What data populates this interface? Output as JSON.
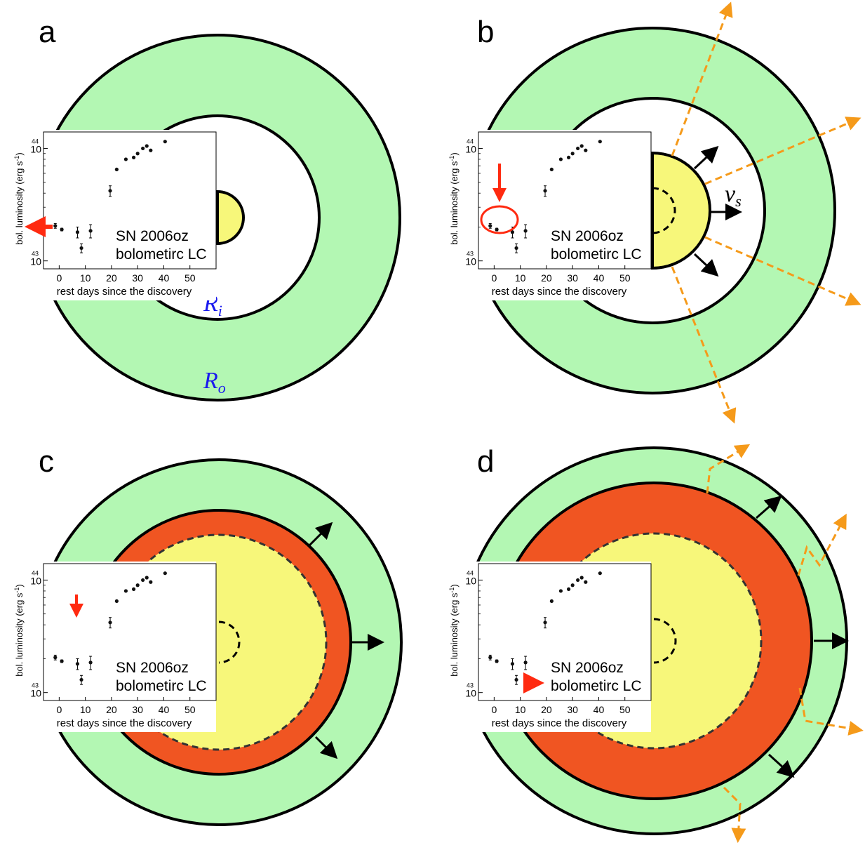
{
  "panels": {
    "a": {
      "label": "a"
    },
    "b": {
      "label": "b"
    },
    "c": {
      "label": "c"
    },
    "d": {
      "label": "d"
    }
  },
  "symbols": {
    "inner_radius": "R",
    "inner_radius_sub": "i",
    "outer_radius": "R",
    "outer_radius_sub": "o",
    "shock_velocity": "v",
    "shock_velocity_sub": "s"
  },
  "inset": {
    "object": "SN 2006oz",
    "subtitle": "bolometirc LC",
    "xlabel": "rest days since the discovery",
    "ylabel": "bol. luminosity (erg s",
    "ylabel_sup": "-1",
    "ylabel_close": ")",
    "x_ticks": [
      "0",
      "10",
      "20",
      "30",
      "40",
      "50"
    ],
    "y_ticks": [
      {
        "base": "10",
        "exp": "44"
      },
      {
        "base": "10",
        "exp": "43"
      }
    ]
  },
  "colors": {
    "csm_shell": "#b3f7b3",
    "ejecta": "#f7f77a",
    "shocked_shell": "#f05522",
    "photon_path": "#f59a1a",
    "marker_arrow": "#ff2a10",
    "radius_label": "#1a1aee"
  },
  "chart_data": {
    "type": "scatter",
    "xlabel": "rest days since the discovery",
    "ylabel": "bol. luminosity (erg s^-1)",
    "yscale": "log",
    "xlim": [
      -6,
      60
    ],
    "ylim": [
      8.5e+42,
      1.4e+44
    ],
    "points": [
      {
        "x": -1.5,
        "y": 2.05e+43,
        "err": 1e+42
      },
      {
        "x": 1.0,
        "y": 1.9e+43,
        "err": 5e+41
      },
      {
        "x": 7.0,
        "y": 1.8e+43,
        "err": 2e+42
      },
      {
        "x": 8.5,
        "y": 1.3e+43,
        "err": 1.2e+42
      },
      {
        "x": 12.0,
        "y": 1.85e+43,
        "err": 2.5e+42
      },
      {
        "x": 19.5,
        "y": 4.2e+43,
        "err": 4.5e+42
      },
      {
        "x": 22.0,
        "y": 6.5e+43,
        "err": 0
      },
      {
        "x": 25.5,
        "y": 8e+43,
        "err": 0
      },
      {
        "x": 28.5,
        "y": 8.3e+43,
        "err": 0
      },
      {
        "x": 30.0,
        "y": 9e+43,
        "err": 0
      },
      {
        "x": 32.0,
        "y": 1e+44,
        "err": 0
      },
      {
        "x": 33.5,
        "y": 1.05e+44,
        "err": 0
      },
      {
        "x": 35.0,
        "y": 9.6e+43,
        "err": 0
      },
      {
        "x": 40.5,
        "y": 1.15e+44,
        "err": 0
      }
    ]
  }
}
